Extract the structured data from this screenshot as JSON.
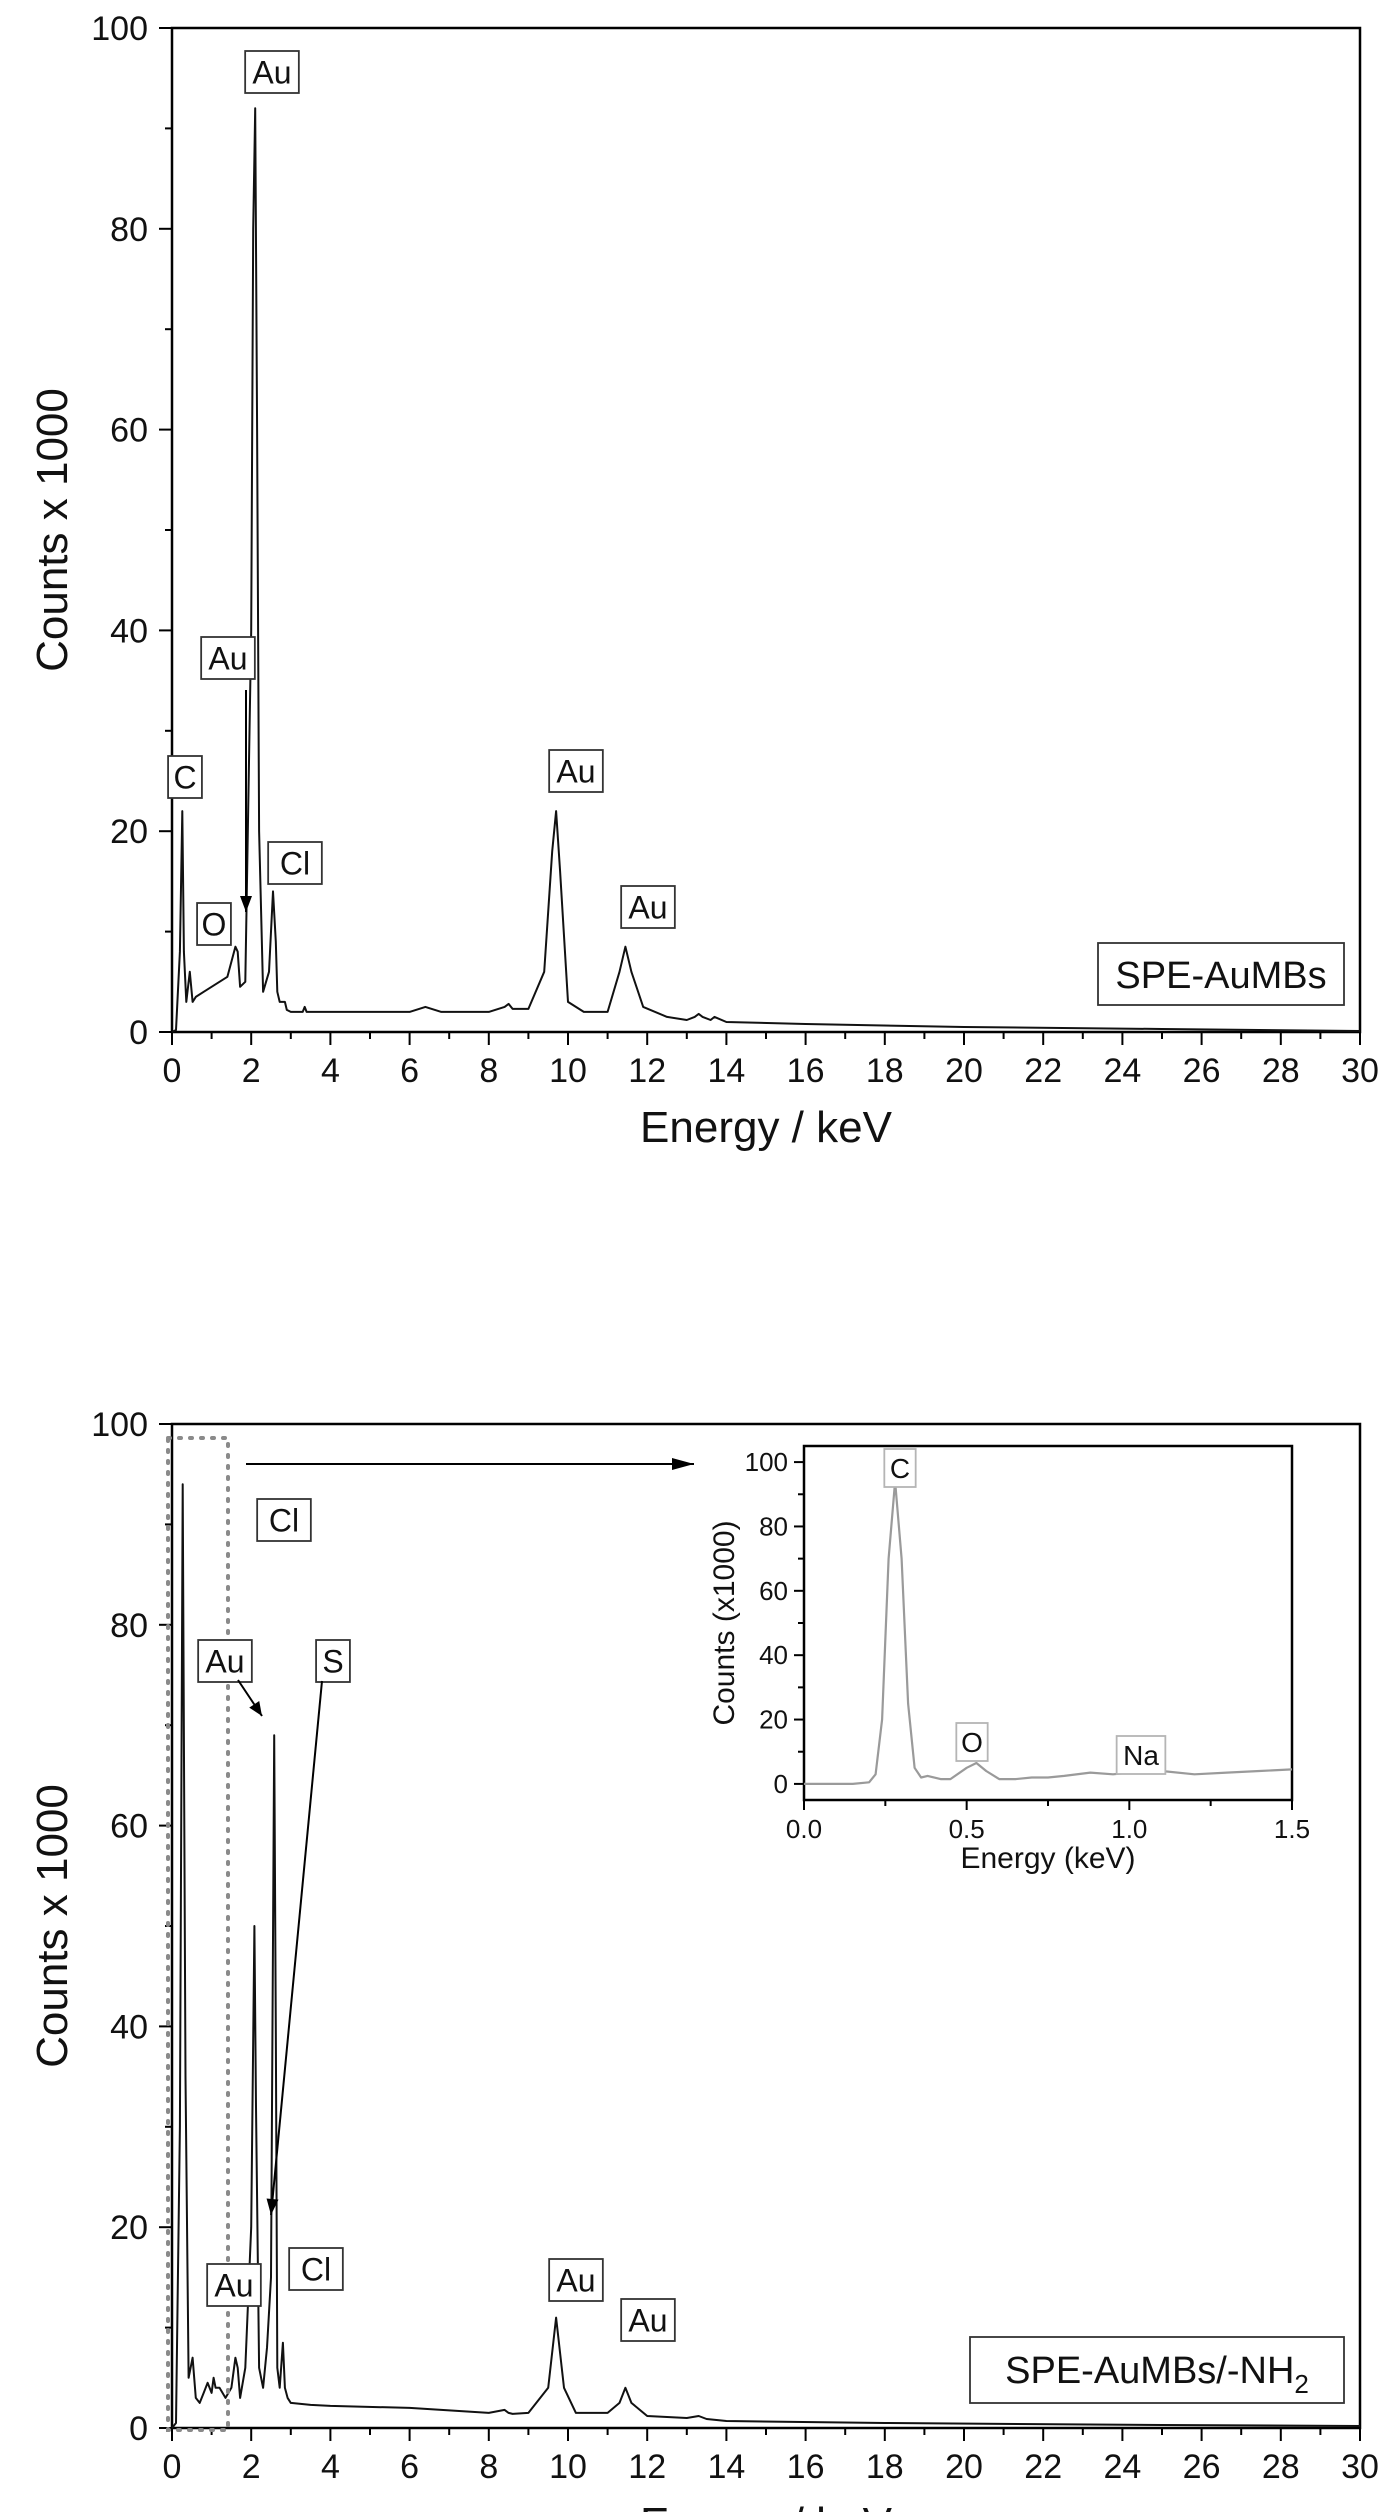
{
  "chart_data": [
    {
      "type": "line",
      "xlabel": "Energy / keV",
      "ylabel": "Counts x 1000",
      "xlim": [
        0,
        30
      ],
      "ylim": [
        0,
        100
      ],
      "xticks": [
        0,
        2,
        4,
        6,
        8,
        10,
        12,
        14,
        16,
        18,
        20,
        22,
        24,
        26,
        28,
        30
      ],
      "yticks": [
        0,
        20,
        40,
        60,
        80,
        100
      ],
      "sample_label": "SPE-AuMBs",
      "series": [
        {
          "x": [
            0,
            0.1,
            0.2,
            0.26,
            0.3,
            0.36,
            0.45,
            0.52,
            0.6,
            0.8,
            1.0,
            1.2,
            1.4,
            1.6,
            1.66,
            1.72,
            1.85,
            2.0,
            2.05,
            2.1,
            2.15,
            2.2,
            2.3,
            2.45,
            2.5,
            2.55,
            2.62,
            2.66,
            2.72,
            2.85,
            2.9,
            3.0,
            3.3,
            3.35,
            3.4,
            4.0,
            5.0,
            6.0,
            6.4,
            6.8,
            7.0,
            8.0,
            8.4,
            8.5,
            8.6,
            9.0,
            9.4,
            9.6,
            9.7,
            9.8,
            10.0,
            10.4,
            11.0,
            11.3,
            11.45,
            11.6,
            11.9,
            12.5,
            13.0,
            13.2,
            13.3,
            13.4,
            13.6,
            13.7,
            14.0,
            16.0,
            20.0,
            25.0,
            30.0
          ],
          "y": [
            0,
            0.2,
            8,
            22,
            8,
            3,
            6,
            3,
            3.5,
            4,
            4.5,
            5,
            5.5,
            8.5,
            8,
            4.5,
            5,
            40,
            80,
            92,
            60,
            20,
            4,
            6,
            10,
            14,
            9,
            4,
            3,
            3,
            2.2,
            2,
            2,
            2.5,
            2,
            2,
            2,
            2,
            2.5,
            2,
            2,
            2,
            2.5,
            2.8,
            2.3,
            2.3,
            6,
            18,
            22,
            16,
            3,
            2,
            2,
            6,
            8.5,
            6,
            2.5,
            1.5,
            1.2,
            1.5,
            1.8,
            1.5,
            1.2,
            1.5,
            1,
            0.8,
            0.5,
            0.3,
            0.1
          ]
        }
      ],
      "annotations": [
        "Au",
        "Au",
        "C",
        "O",
        "Cl",
        "Au",
        "Au"
      ]
    },
    {
      "type": "line",
      "xlabel": "Energy / keV",
      "ylabel": "Counts x 1000",
      "xlim": [
        0,
        30
      ],
      "ylim": [
        0,
        100
      ],
      "xticks": [
        0,
        2,
        4,
        6,
        8,
        10,
        12,
        14,
        16,
        18,
        20,
        22,
        24,
        26,
        28,
        30
      ],
      "yticks": [
        0,
        20,
        40,
        60,
        80,
        100
      ],
      "sample_label": "SPE-AuMBs/-NH",
      "sample_label_sub": "2",
      "series": [
        {
          "x": [
            0,
            0.1,
            0.2,
            0.27,
            0.34,
            0.42,
            0.52,
            0.6,
            0.7,
            0.8,
            0.9,
            1.0,
            1.05,
            1.1,
            1.2,
            1.35,
            1.5,
            1.6,
            1.66,
            1.72,
            1.85,
            2.0,
            2.08,
            2.12,
            2.2,
            2.3,
            2.4,
            2.5,
            2.58,
            2.62,
            2.66,
            2.72,
            2.8,
            2.85,
            2.92,
            3.0,
            3.5,
            4.0,
            6.0,
            8.0,
            8.4,
            8.5,
            8.6,
            9.0,
            9.5,
            9.7,
            9.9,
            10.2,
            11.0,
            11.3,
            11.45,
            11.6,
            12.0,
            13.0,
            13.3,
            13.5,
            14.0,
            18.0,
            25.0,
            30.0
          ],
          "y": [
            0,
            0.5,
            30,
            94,
            35,
            5,
            7,
            3,
            2.5,
            3.5,
            4.5,
            3.5,
            5,
            4,
            4,
            3,
            4,
            7,
            6,
            3,
            6,
            20,
            50,
            32,
            6,
            4,
            8,
            15,
            69,
            40,
            6,
            4,
            8.5,
            4,
            3,
            2.5,
            2.3,
            2.2,
            2,
            1.5,
            1.8,
            1.5,
            1.4,
            1.5,
            4,
            11,
            4,
            1.5,
            1.5,
            2.5,
            4,
            2.5,
            1.2,
            1,
            1.2,
            0.9,
            0.7,
            0.5,
            0.3,
            0.2
          ]
        }
      ],
      "annotations": [
        "Cl",
        "Au",
        "S",
        "Au",
        "Cl",
        "Au",
        "Au"
      ],
      "inset": {
        "type": "line",
        "xlabel": "Energy (keV)",
        "ylabel": "Counts (x1000)",
        "xlim": [
          0,
          1.5
        ],
        "ylim": [
          -5,
          105
        ],
        "xticks": [
          0.0,
          0.5,
          1.0,
          1.5
        ],
        "xtick_labels": [
          "0.0",
          "0.5",
          "1.0",
          "1.5"
        ],
        "yticks": [
          0,
          20,
          40,
          60,
          80,
          100
        ],
        "series": [
          {
            "x": [
              0,
              0.1,
              0.15,
              0.2,
              0.22,
              0.24,
              0.26,
              0.28,
              0.3,
              0.32,
              0.34,
              0.36,
              0.38,
              0.42,
              0.45,
              0.5,
              0.53,
              0.56,
              0.6,
              0.65,
              0.7,
              0.75,
              0.8,
              0.88,
              0.95,
              1.0,
              1.05,
              1.1,
              1.2,
              1.3,
              1.4,
              1.5
            ],
            "y": [
              0,
              0,
              0,
              0.5,
              3,
              20,
              70,
              94,
              70,
              25,
              5,
              2,
              2.5,
              1.5,
              1.5,
              5,
              6.5,
              4,
              1.5,
              1.5,
              2,
              2,
              2.5,
              3.5,
              3,
              3.5,
              4.5,
              4,
              3,
              3.5,
              4,
              4.5
            ]
          }
        ],
        "annotations": [
          "C",
          "O",
          "Na"
        ]
      }
    }
  ]
}
